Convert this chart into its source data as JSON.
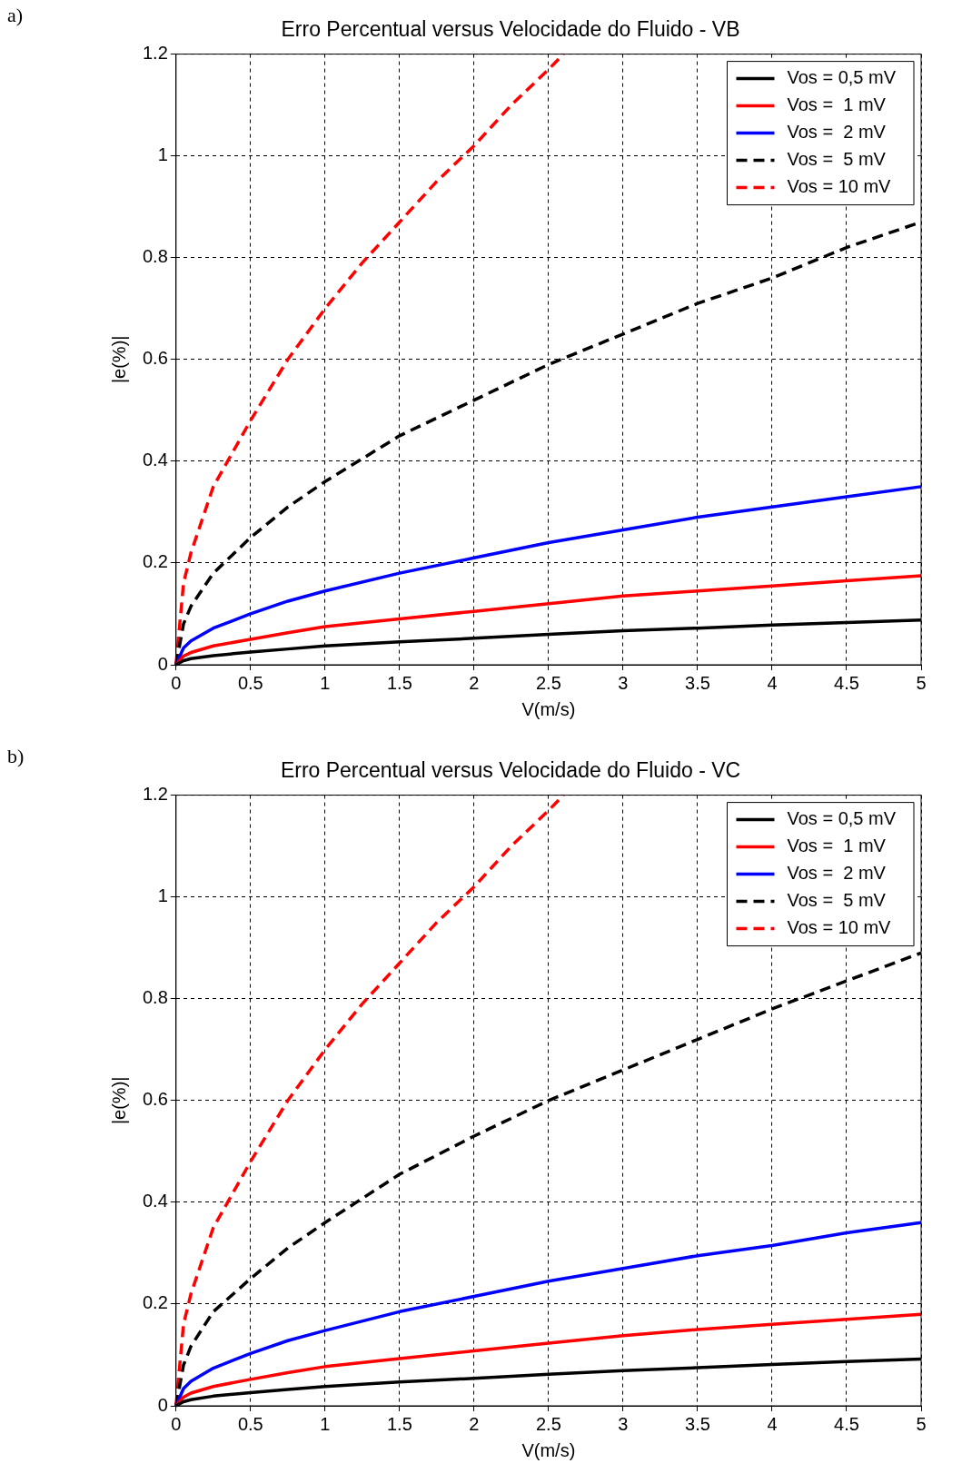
{
  "chart_data": [
    {
      "type": "line",
      "title": "Erro Percentual versus Velocidade do Fluido - VB",
      "xlabel": "V(m/s)",
      "ylabel": "|e(%)|",
      "annotations": [
        "a)"
      ],
      "xlim": [
        0,
        5
      ],
      "xticks": [
        0,
        0.5,
        1,
        1.5,
        2,
        2.5,
        3,
        3.5,
        4,
        4.5,
        5
      ],
      "ylim": [
        0,
        1.2
      ],
      "yticks": [
        0,
        0.2,
        0.4,
        0.6,
        0.8,
        1,
        1.2
      ],
      "grid": true,
      "legend": "top right",
      "marker": "none",
      "series": [
        {
          "name": "Vos = 0,5 mV",
          "color": "#000000",
          "line_style": "solid",
          "x": [
            0,
            0.05,
            0.1,
            0.25,
            0.5,
            0.75,
            1,
            1.5,
            2,
            2.5,
            3,
            3.5,
            4,
            4.5,
            5
          ],
          "values": [
            0,
            0.008,
            0.012,
            0.018,
            0.025,
            0.031,
            0.037,
            0.045,
            0.052,
            0.06,
            0.067,
            0.072,
            0.078,
            0.083,
            0.088
          ]
        },
        {
          "name": "Vos =  1 mV",
          "color": "#ff0000",
          "line_style": "solid",
          "x": [
            0,
            0.05,
            0.1,
            0.25,
            0.5,
            0.75,
            1,
            1.5,
            2,
            2.5,
            3,
            3.5,
            4,
            4.5,
            5
          ],
          "values": [
            0,
            0.017,
            0.024,
            0.037,
            0.05,
            0.063,
            0.075,
            0.09,
            0.105,
            0.12,
            0.135,
            0.145,
            0.155,
            0.165,
            0.175
          ]
        },
        {
          "name": "Vos =  2 mV",
          "color": "#0000ff",
          "line_style": "solid",
          "x": [
            0,
            0.05,
            0.1,
            0.25,
            0.5,
            0.75,
            1,
            1.5,
            2,
            2.5,
            3,
            3.5,
            4,
            4.5,
            5
          ],
          "values": [
            0,
            0.033,
            0.047,
            0.072,
            0.1,
            0.125,
            0.145,
            0.18,
            0.21,
            0.24,
            0.265,
            0.29,
            0.31,
            0.33,
            0.35
          ]
        },
        {
          "name": "Vos =  5 mV",
          "color": "#000000",
          "line_style": "dashed",
          "x": [
            0,
            0.05,
            0.1,
            0.25,
            0.5,
            0.75,
            1,
            1.5,
            2,
            2.5,
            3,
            3.5,
            4,
            4.5,
            5
          ],
          "values": [
            0,
            0.08,
            0.115,
            0.18,
            0.25,
            0.31,
            0.36,
            0.45,
            0.52,
            0.59,
            0.65,
            0.71,
            0.76,
            0.82,
            0.87
          ]
        },
        {
          "name": "Vos = 10 mV",
          "color": "#ff0000",
          "line_style": "dashed",
          "x": [
            0,
            0.05,
            0.1,
            0.25,
            0.5,
            0.75,
            1,
            1.25,
            1.5,
            1.75,
            2,
            2.25,
            2.5,
            2.6
          ],
          "values": [
            0,
            0.16,
            0.22,
            0.35,
            0.48,
            0.6,
            0.7,
            0.79,
            0.87,
            0.95,
            1.02,
            1.1,
            1.17,
            1.2
          ]
        }
      ]
    },
    {
      "type": "line",
      "title": "Erro Percentual versus Velocidade do Fluido - VC",
      "xlabel": "V(m/s)",
      "ylabel": "|e(%)|",
      "annotations": [
        "b)"
      ],
      "xlim": [
        0,
        5
      ],
      "xticks": [
        0,
        0.5,
        1,
        1.5,
        2,
        2.5,
        3,
        3.5,
        4,
        4.5,
        5
      ],
      "ylim": [
        0,
        1.2
      ],
      "yticks": [
        0,
        0.2,
        0.4,
        0.6,
        0.8,
        1,
        1.2
      ],
      "grid": true,
      "legend": "top right",
      "marker": "none",
      "series": [
        {
          "name": "Vos = 0,5 mV",
          "color": "#000000",
          "line_style": "solid",
          "x": [
            0,
            0.05,
            0.1,
            0.25,
            0.5,
            0.75,
            1,
            1.5,
            2,
            2.5,
            3,
            3.5,
            4,
            4.5,
            5
          ],
          "values": [
            0,
            0.008,
            0.012,
            0.019,
            0.026,
            0.032,
            0.038,
            0.047,
            0.054,
            0.062,
            0.069,
            0.075,
            0.081,
            0.087,
            0.092
          ]
        },
        {
          "name": "Vos =  1 mV",
          "color": "#ff0000",
          "line_style": "solid",
          "x": [
            0,
            0.05,
            0.1,
            0.25,
            0.5,
            0.75,
            1,
            1.5,
            2,
            2.5,
            3,
            3.5,
            4,
            4.5,
            5
          ],
          "values": [
            0,
            0.017,
            0.025,
            0.038,
            0.052,
            0.065,
            0.077,
            0.093,
            0.108,
            0.123,
            0.138,
            0.15,
            0.16,
            0.17,
            0.18
          ]
        },
        {
          "name": "Vos =  2 mV",
          "color": "#0000ff",
          "line_style": "solid",
          "x": [
            0,
            0.05,
            0.1,
            0.25,
            0.5,
            0.75,
            1,
            1.5,
            2,
            2.5,
            3,
            3.5,
            4,
            4.5,
            5
          ],
          "values": [
            0,
            0.034,
            0.048,
            0.074,
            0.103,
            0.128,
            0.148,
            0.185,
            0.215,
            0.245,
            0.27,
            0.295,
            0.315,
            0.34,
            0.36
          ]
        },
        {
          "name": "Vos =  5 mV",
          "color": "#000000",
          "line_style": "dashed",
          "x": [
            0,
            0.05,
            0.1,
            0.25,
            0.5,
            0.75,
            1,
            1.5,
            2,
            2.5,
            3,
            3.5,
            4,
            4.5,
            5
          ],
          "values": [
            0,
            0.08,
            0.117,
            0.185,
            0.25,
            0.31,
            0.36,
            0.455,
            0.53,
            0.6,
            0.66,
            0.72,
            0.78,
            0.835,
            0.89
          ]
        },
        {
          "name": "Vos = 10 mV",
          "color": "#ff0000",
          "line_style": "dashed",
          "x": [
            0,
            0.05,
            0.1,
            0.25,
            0.5,
            0.75,
            1,
            1.25,
            1.5,
            1.75,
            2,
            2.25,
            2.5,
            2.6
          ],
          "values": [
            0,
            0.16,
            0.22,
            0.35,
            0.48,
            0.6,
            0.7,
            0.79,
            0.87,
            0.95,
            1.02,
            1.1,
            1.17,
            1.2
          ]
        }
      ]
    }
  ]
}
